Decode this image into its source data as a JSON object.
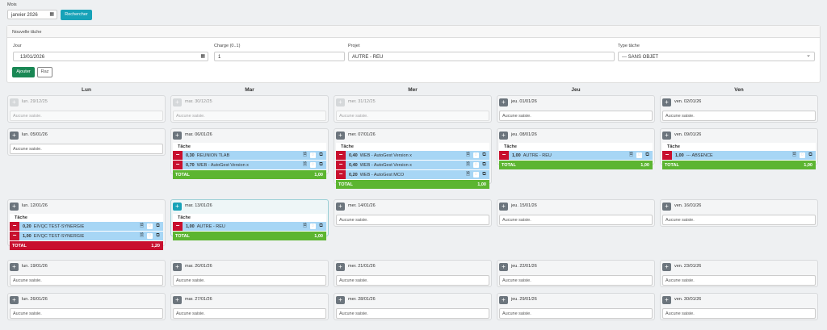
{
  "search": {
    "label": "Mois",
    "value": "janvier 2026",
    "button": "Rechercher"
  },
  "new_task": {
    "title": "Nouvelle tâche",
    "day_label": "Jour",
    "day_value": "13/01/2026",
    "charge_label": "Charge (0..1)",
    "charge_value": "1",
    "project_label": "Projet",
    "project_value": "AUTRE - REU",
    "type_label": "Type tâche",
    "type_value": "--- SANS OBJET",
    "add_button": "Ajouter",
    "reset_button": "Raz"
  },
  "columns": [
    "Lun",
    "Mar",
    "Mer",
    "Jeu",
    "Ven"
  ],
  "empty_text": "Aucune saisie.",
  "table_header": "Tâche",
  "total_label": "TOTAL",
  "days": {
    "d0": "lun. 29/12/25",
    "d1": "mar. 30/12/25",
    "d2": "mer. 31/12/25",
    "d3": "jeu. 01/01/26",
    "d4": "ven. 02/01/26",
    "d5": "lun. 05/01/26",
    "d6": "mar. 06/01/26",
    "d7": "mer. 07/01/26",
    "d8": "jeu. 08/01/26",
    "d9": "ven. 09/01/26",
    "d10": "lun. 12/01/26",
    "d11": "mar. 13/01/26",
    "d12": "mer. 14/01/26",
    "d13": "jeu. 15/01/26",
    "d14": "ven. 16/01/26",
    "d15": "lun. 19/01/26",
    "d16": "mar. 20/01/26",
    "d17": "mer. 21/01/26",
    "d18": "jeu. 22/01/26",
    "d19": "ven. 23/01/26",
    "d20": "lun. 26/01/26",
    "d21": "mar. 27/01/26",
    "d22": "mer. 28/01/26",
    "d23": "jeu. 29/01/26",
    "d24": "ven. 30/01/26"
  },
  "entries": {
    "d6": {
      "rows": [
        {
          "charge": "0,30",
          "label": "REUNION TLAB"
        },
        {
          "charge": "0,70",
          "label": "WEB - AutoGest Version x"
        }
      ],
      "total": "1,00"
    },
    "d7": {
      "rows": [
        {
          "charge": "0,40",
          "label": "WEB - AutoGest Version x"
        },
        {
          "charge": "0,40",
          "label": "WEB - AutoGest Version x"
        },
        {
          "charge": "0,20",
          "label": "WEB - AutoGest MCO"
        }
      ],
      "total": "1,00"
    },
    "d8": {
      "rows": [
        {
          "charge": "1,00",
          "label": "AUTRE - REU"
        }
      ],
      "total": "1,00"
    },
    "d9": {
      "rows": [
        {
          "charge": "1,00",
          "label": "--- ABSENCE"
        }
      ],
      "total": "1,00"
    },
    "d10": {
      "rows": [
        {
          "charge": "0,20",
          "label": "EIVQC TEST-SYNERGIE"
        },
        {
          "charge": "1,00",
          "label": "EIVQC TEST-SYNERGIE"
        }
      ],
      "total": "1,20"
    },
    "d11": {
      "rows": [
        {
          "charge": "1,00",
          "label": "AUTRE - REU"
        }
      ],
      "total": "1,00"
    }
  },
  "icons": {
    "add": "plus-icon",
    "remove": "minus-icon",
    "edit": "edit-icon",
    "comment": "comment-icon",
    "copy": "copy-icon",
    "calendar": "calendar-icon",
    "dropdown": "chevron-down-icon"
  },
  "colors": {
    "teal": "#17a2b8",
    "green": "#198754",
    "row_blue": "#a7d6f5",
    "total_green": "#5cb531",
    "remove_red": "#c8102e"
  }
}
